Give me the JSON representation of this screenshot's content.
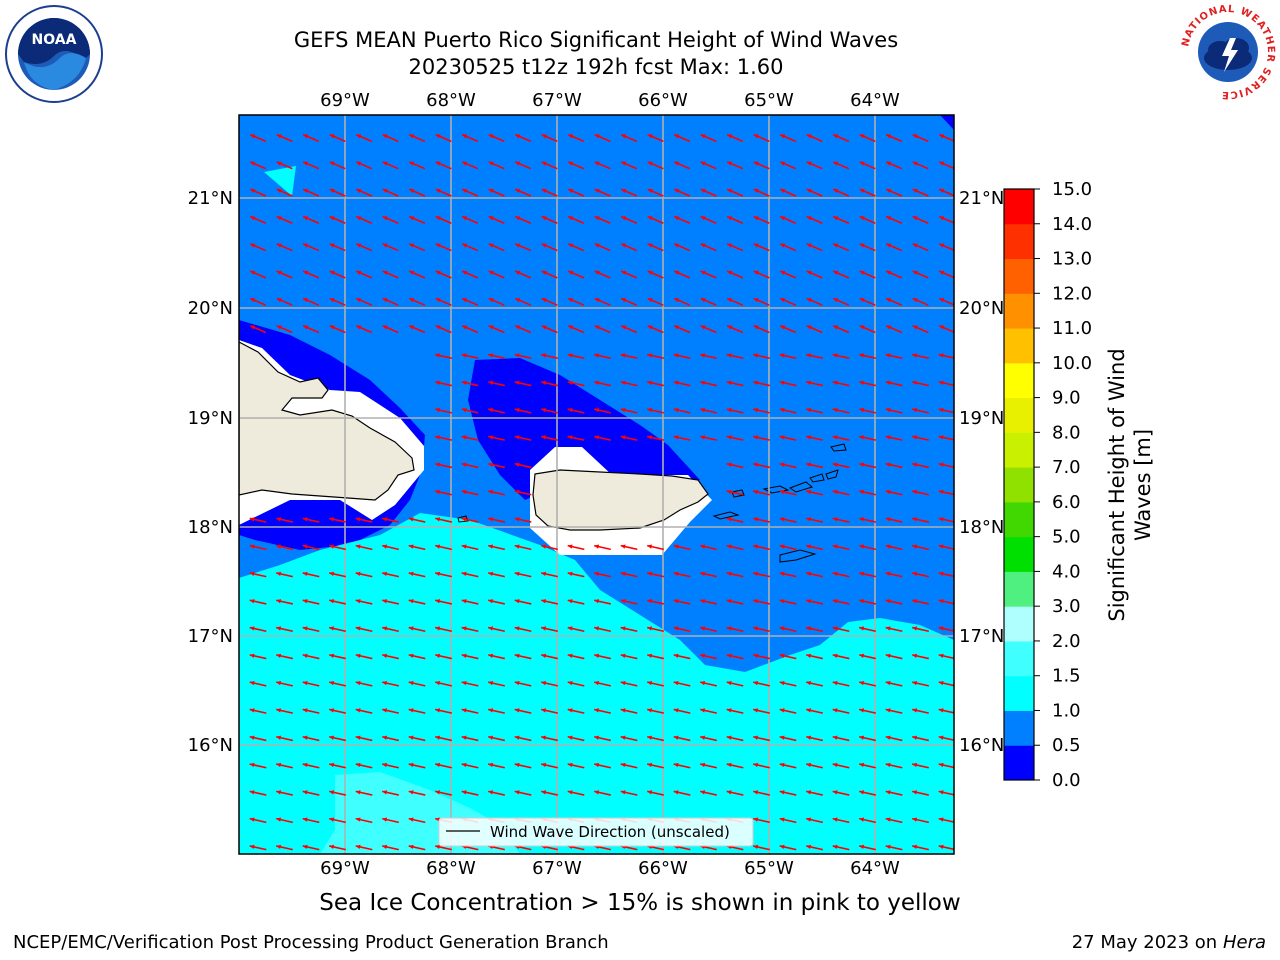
{
  "title": {
    "line1": "GEFS MEAN Puerto Rico Significant Height of Wind Waves",
    "line2": "20230525 t12z 192h fcst   Max: 1.60"
  },
  "logos": {
    "noaa": "NOAA",
    "nws_ring": "NATIONAL WEATHER SERVICE"
  },
  "map": {
    "lon_labels": [
      "69°W",
      "68°W",
      "67°W",
      "66°W",
      "65°W",
      "64°W"
    ],
    "lat_labels": [
      "21°N",
      "20°N",
      "19°N",
      "18°N",
      "17°N",
      "16°N"
    ],
    "legend_label": "Wind Wave Direction (unscaled)",
    "arrow_color": "#ff0000",
    "land_color": "#efebdc"
  },
  "colorbar": {
    "label_line1": "Significant Height of Wind",
    "label_line2": "Waves [m]",
    "ticks": [
      "0.0",
      "0.5",
      "1.0",
      "1.5",
      "2.0",
      "3.0",
      "4.0",
      "5.0",
      "6.0",
      "7.0",
      "8.0",
      "9.0",
      "10.0",
      "11.0",
      "12.0",
      "13.0",
      "14.0",
      "15.0"
    ],
    "colors": [
      "#0000ff",
      "#0080ff",
      "#00ffff",
      "#40ffff",
      "#b0ffff",
      "#50f080",
      "#00e000",
      "#40d800",
      "#90e000",
      "#c8f000",
      "#e8f000",
      "#ffff00",
      "#ffc000",
      "#ff9000",
      "#ff6000",
      "#ff3000",
      "#ff0000"
    ]
  },
  "sea_ice_note": "Sea Ice Concentration > 15% is shown in pink to yellow",
  "footer": {
    "credit": "NCEP/EMC/Verification Post Processing Product Generation Branch",
    "date": "27 May 2023 on",
    "host": "Hera"
  }
}
